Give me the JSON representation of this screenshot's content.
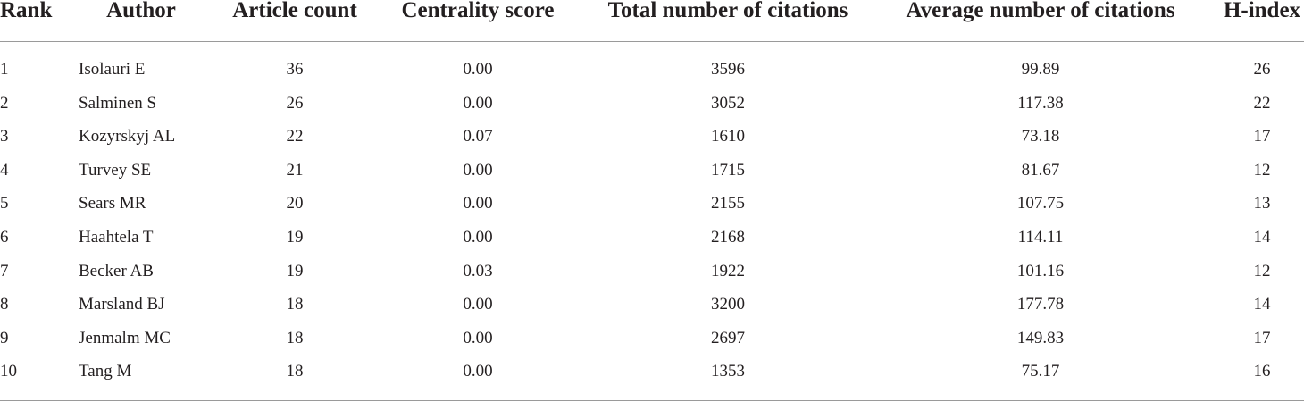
{
  "table": {
    "header": [
      "Rank",
      "Author",
      "Article count",
      "Centrality score",
      "Total number of citations",
      "Average number of citations",
      "H-index"
    ],
    "rows": [
      [
        "1",
        "Isolauri E",
        "36",
        "0.00",
        "3596",
        "99.89",
        "26"
      ],
      [
        "2",
        "Salminen S",
        "26",
        "0.00",
        "3052",
        "117.38",
        "22"
      ],
      [
        "3",
        "Kozyrskyj AL",
        "22",
        "0.07",
        "1610",
        "73.18",
        "17"
      ],
      [
        "4",
        "Turvey SE",
        "21",
        "0.00",
        "1715",
        "81.67",
        "12"
      ],
      [
        "5",
        "Sears MR",
        "20",
        "0.00",
        "2155",
        "107.75",
        "13"
      ],
      [
        "6",
        "Haahtela T",
        "19",
        "0.00",
        "2168",
        "114.11",
        "14"
      ],
      [
        "7",
        "Becker AB",
        "19",
        "0.03",
        "1922",
        "101.16",
        "12"
      ],
      [
        "8",
        "Marsland BJ",
        "18",
        "0.00",
        "3200",
        "177.78",
        "14"
      ],
      [
        "9",
        "Jenmalm MC",
        "18",
        "0.00",
        "2697",
        "149.83",
        "17"
      ],
      [
        "10",
        "Tang M",
        "18",
        "0.00",
        "1353",
        "75.17",
        "16"
      ]
    ]
  }
}
